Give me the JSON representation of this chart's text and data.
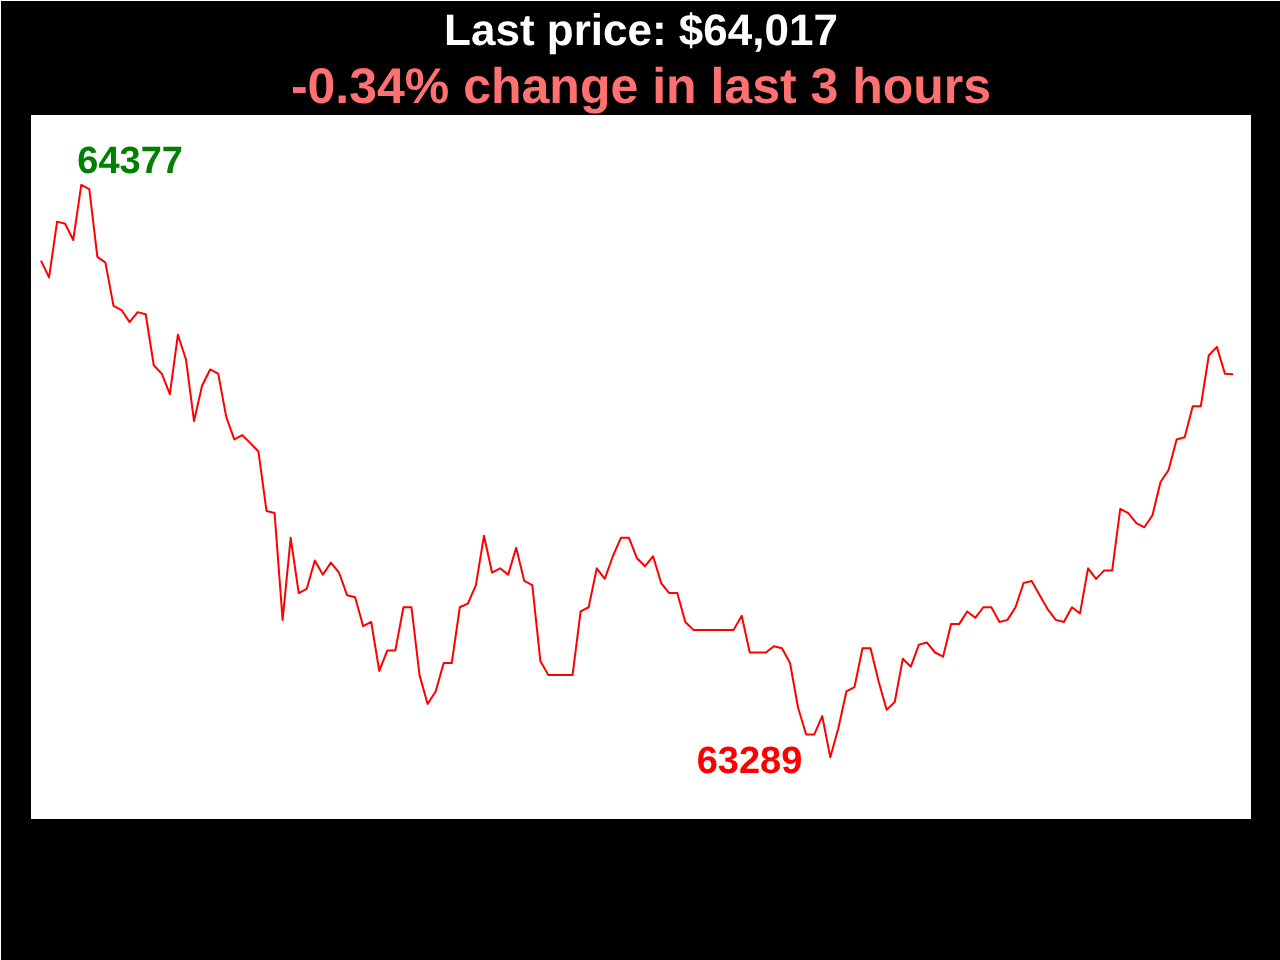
{
  "chart_data": {
    "type": "line",
    "title": "Last price: $64,017",
    "subtitle": "-0.34% change in last 3 hours",
    "categories": [
      null,
      null,
      null,
      null,
      null,
      null,
      null,
      null,
      null,
      null,
      null,
      null,
      null,
      null,
      null,
      null,
      null,
      null,
      null,
      null,
      null,
      null,
      null,
      null,
      null,
      null,
      null,
      null,
      null,
      null,
      null,
      null,
      null,
      null,
      null,
      null,
      null,
      null,
      null,
      null,
      null,
      null,
      null,
      null,
      null,
      null,
      null,
      null,
      null,
      null,
      null,
      null,
      null,
      null,
      null,
      null,
      null,
      null,
      null,
      null,
      null,
      null,
      null,
      null,
      null,
      null,
      null,
      null,
      null,
      null,
      null,
      null,
      null,
      null,
      null,
      null,
      null,
      null,
      null,
      null,
      null,
      null,
      null,
      null,
      null,
      null,
      null,
      null,
      null,
      null,
      null,
      null,
      null,
      null,
      null,
      null,
      null,
      null,
      null,
      null,
      null,
      null,
      null,
      null,
      null,
      null,
      null,
      null,
      null,
      null,
      null,
      null,
      null,
      null,
      null,
      null,
      null,
      null,
      null,
      null,
      null,
      null,
      null,
      null,
      null,
      null,
      null,
      null,
      null,
      null,
      null,
      null,
      null,
      null,
      null,
      null,
      null,
      null,
      null,
      null,
      null,
      null,
      null,
      null,
      null,
      null,
      null,
      null,
      null
    ],
    "series": [
      {
        "color": "#ff0000",
        "values": [
          64233,
          64201,
          64307,
          64303,
          64272,
          64377,
          64369,
          64240,
          64229,
          64147,
          64139,
          64116,
          64135,
          64131,
          64034,
          64018,
          63979,
          64092,
          64045,
          63928,
          63995,
          64026,
          64018,
          63936,
          63893,
          63901,
          63886,
          63870,
          63757,
          63753,
          63550,
          63706,
          63601,
          63609,
          63663,
          63636,
          63659,
          63640,
          63597,
          63593,
          63538,
          63546,
          63453,
          63492,
          63492,
          63574,
          63574,
          63445,
          63390,
          63414,
          63468,
          63468,
          63574,
          63581,
          63616,
          63710,
          63640,
          63648,
          63636,
          63687,
          63624,
          63616,
          63472,
          63445,
          63445,
          63445,
          63445,
          63566,
          63574,
          63648,
          63628,
          63671,
          63706,
          63706,
          63667,
          63652,
          63671,
          63620,
          63601,
          63601,
          63546,
          63531,
          63531,
          63531,
          63531,
          63531,
          63531,
          63558,
          63488,
          63488,
          63488,
          63500,
          63496,
          63468,
          63383,
          63332,
          63332,
          63367,
          63289,
          63344,
          63414,
          63422,
          63496,
          63496,
          63433,
          63379,
          63394,
          63476,
          63461,
          63503,
          63507,
          63488,
          63480,
          63542,
          63542,
          63566,
          63554,
          63574,
          63574,
          63546,
          63550,
          63574,
          63620,
          63624,
          63597,
          63570,
          63550,
          63546,
          63574,
          63562,
          63648,
          63628,
          63644,
          63644,
          63761,
          63753,
          63734,
          63726,
          63749,
          63812,
          63835,
          63893,
          63897,
          63956,
          63956,
          64053,
          64069,
          64018,
          64017
        ],
        "value_labels": [
          null,
          null,
          null,
          null,
          null,
          "64377",
          null,
          null,
          null,
          null,
          null,
          null,
          null,
          null,
          null,
          null,
          null,
          null,
          null,
          null,
          null,
          null,
          null,
          null,
          null,
          null,
          null,
          null,
          null,
          null,
          null,
          null,
          null,
          null,
          null,
          null,
          null,
          null,
          null,
          null,
          null,
          null,
          null,
          null,
          null,
          null,
          null,
          null,
          null,
          null,
          null,
          null,
          null,
          null,
          null,
          null,
          null,
          null,
          null,
          null,
          null,
          null,
          null,
          null,
          null,
          null,
          null,
          null,
          null,
          null,
          null,
          null,
          null,
          null,
          null,
          null,
          null,
          null,
          null,
          null,
          null,
          null,
          null,
          null,
          null,
          null,
          null,
          null,
          null,
          null,
          null,
          null,
          null,
          null,
          null,
          null,
          null,
          null,
          "63289",
          null,
          null,
          null,
          null,
          null,
          null,
          null,
          null,
          null,
          null,
          null,
          null,
          null,
          null,
          null,
          null,
          null,
          null,
          null,
          null,
          null,
          null,
          null,
          null,
          null,
          null,
          null,
          null,
          null,
          null,
          null,
          null,
          null,
          null,
          null,
          null,
          null,
          null,
          null,
          null,
          null,
          null,
          null,
          null,
          null,
          null,
          null,
          null,
          null,
          null
        ]
      }
    ],
    "grid": false,
    "marker": "none",
    "line_style": "solid"
  }
}
